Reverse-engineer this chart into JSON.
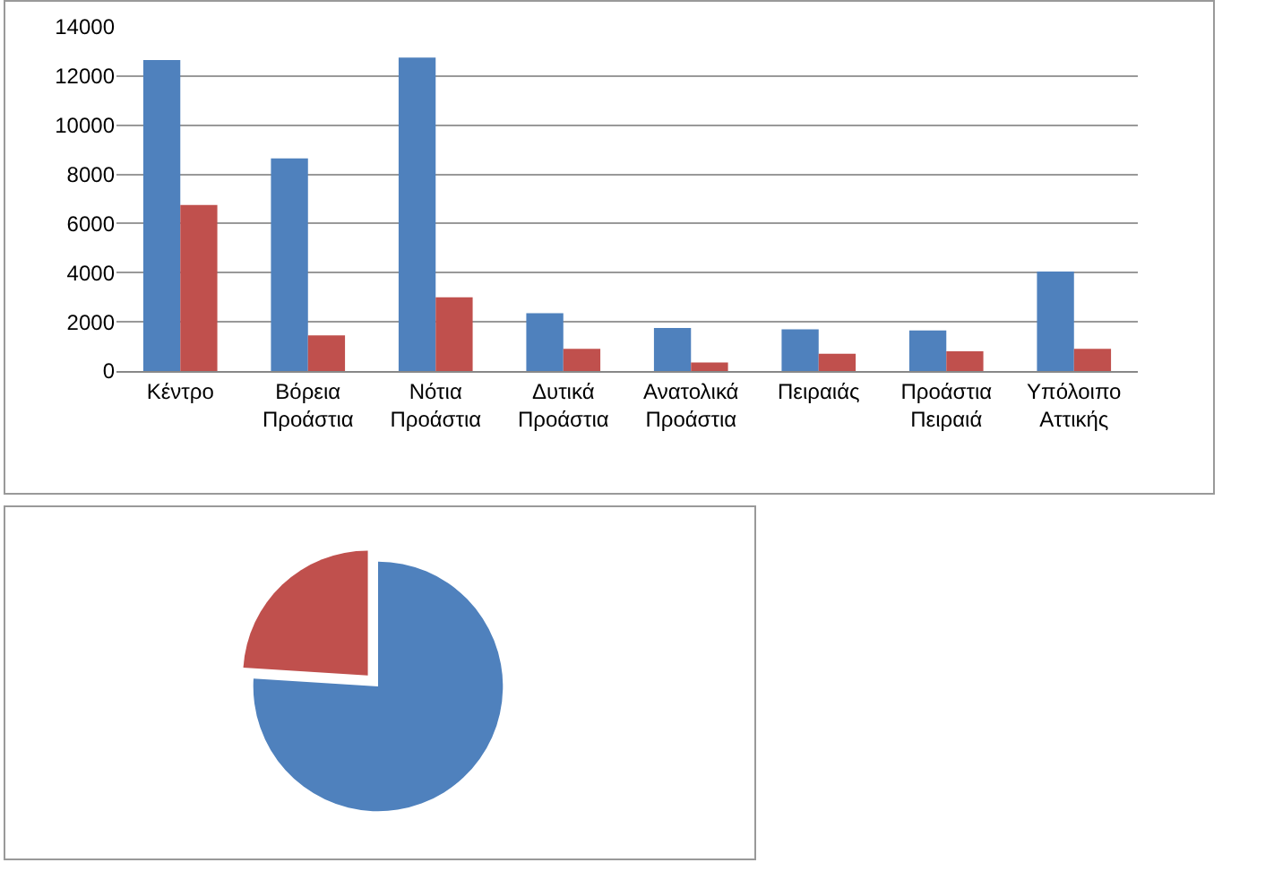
{
  "chart_data": [
    {
      "type": "bar",
      "categories": [
        "Κέντρο",
        "Βόρεια Προάστια",
        "Νότια Προάστια",
        "Δυτικά Προάστια",
        "Ανατολικά Προάστια",
        "Πειραιάς",
        "Προάστια Πειραιά",
        "Υπόλοιπο Αττικής"
      ],
      "series": [
        {
          "color": "#4f81bd",
          "values": [
            12650,
            8650,
            12750,
            2350,
            1750,
            1700,
            1650,
            4050
          ]
        },
        {
          "color": "#c0504d",
          "values": [
            6750,
            1450,
            3000,
            900,
            350,
            700,
            800,
            900
          ]
        }
      ],
      "ylim": [
        0,
        14000
      ],
      "yticks": [
        0,
        2000,
        4000,
        6000,
        8000,
        10000,
        12000,
        14000
      ],
      "grid": "y"
    },
    {
      "type": "pie",
      "categories": [
        null,
        null
      ],
      "values": [
        76,
        24
      ],
      "colors": [
        "#4f81bd",
        "#c0504d"
      ]
    }
  ]
}
